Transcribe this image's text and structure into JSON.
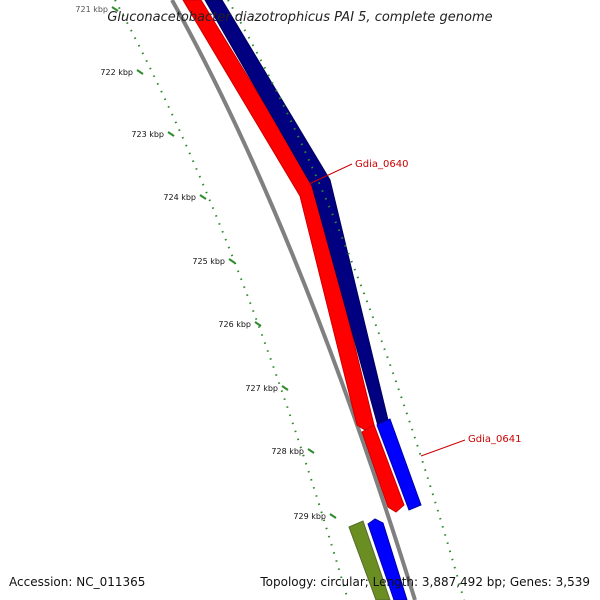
{
  "title": "Gluconacetobacter diazotrophicus PAI 5, complete genome",
  "footer": {
    "accession": "Accession: NC_011365",
    "summary": "Topology: circular; Length: 3,887,492 bp; Genes: 3,539"
  },
  "ruler": {
    "color": "#2e8b2e",
    "ticks": [
      "721 kbp",
      "722 kbp",
      "723 kbp",
      "724 kbp",
      "725 kbp",
      "726 kbp",
      "727 kbp",
      "728 kbp",
      "729 kbp"
    ]
  },
  "genes": [
    {
      "label": "Gdia_0640",
      "strand": "+",
      "color": "#000080",
      "label_color": "#cc0000"
    },
    {
      "label": "Gdia_0641",
      "strand": "+",
      "color": "#0000ff",
      "label_color": "#cc0000"
    }
  ],
  "cds_colors": {
    "minus_strand": "#ff0000",
    "other": "#6b8e23",
    "backbone": "#808080"
  }
}
